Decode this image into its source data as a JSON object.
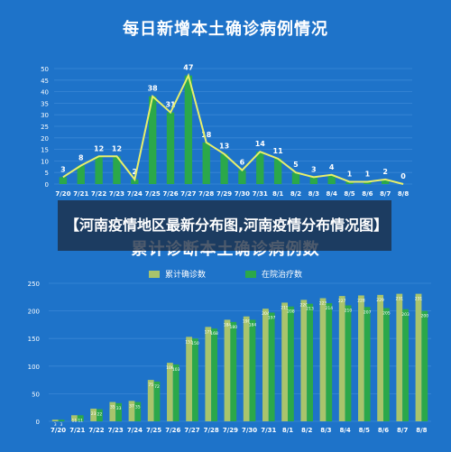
{
  "banner_text": "【河南疫情地区最新分布图,河南疫情分布情况图】",
  "colors": {
    "bg": "#1E73C9",
    "bar_green": "#2BA84A",
    "line_yellow": "#E8EF6A",
    "bar_olive": "#A9C46C",
    "grid": "#3A88D6",
    "text": "#FFFFFF"
  },
  "chart_data": [
    {
      "type": "bar",
      "title": "每日新增本土确诊病例情况",
      "categories": [
        "7/20",
        "7/21",
        "7/22",
        "7/23",
        "7/24",
        "7/25",
        "7/26",
        "7/27",
        "7/28",
        "7/29",
        "7/30",
        "7/31",
        "8/1",
        "8/2",
        "8/3",
        "8/4",
        "8/5",
        "8/6",
        "8/7",
        "8/8"
      ],
      "values": [
        3,
        8,
        12,
        12,
        2,
        38,
        31,
        47,
        18,
        13,
        6,
        14,
        11,
        5,
        3,
        4,
        1,
        1,
        2,
        0
      ],
      "overlay_line": true,
      "ylim": [
        0,
        50
      ],
      "yticks": [
        0,
        5,
        10,
        15,
        20,
        25,
        30,
        35,
        40,
        45,
        50
      ],
      "grid": true
    },
    {
      "type": "bar",
      "title": "累计诊断本土确诊病例数",
      "categories": [
        "7/20",
        "7/21",
        "7/22",
        "7/23",
        "7/24",
        "7/25",
        "7/26",
        "7/27",
        "7/28",
        "7/29",
        "7/30",
        "7/31",
        "8/1",
        "8/2",
        "8/3",
        "8/4",
        "8/5",
        "8/6",
        "8/7",
        "8/8"
      ],
      "series": [
        {
          "name": "累计确诊数",
          "values": [
            3,
            11,
            23,
            35,
            37,
            75,
            106,
            153,
            171,
            184,
            190,
            204,
            215,
            220,
            223,
            227,
            228,
            229,
            231,
            231
          ]
        },
        {
          "name": "在院治疗数",
          "values": [
            3,
            11,
            22,
            33,
            35,
            72,
            103,
            150,
            168,
            180,
            184,
            197,
            208,
            213,
            214,
            210,
            207,
            205,
            203,
            200
          ]
        }
      ],
      "legend_position": "top",
      "ylim": [
        0,
        250
      ],
      "yticks": [
        0,
        50,
        100,
        150,
        200,
        250
      ],
      "grid": true
    }
  ]
}
